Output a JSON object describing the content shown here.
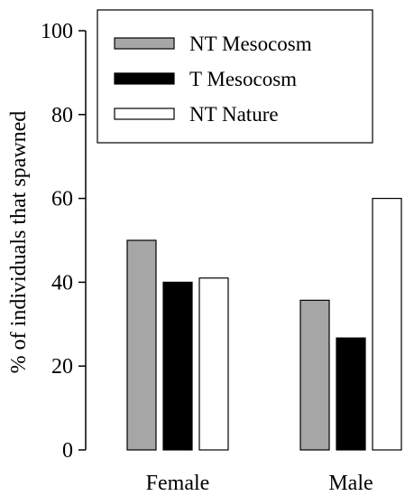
{
  "chart_data": {
    "type": "bar",
    "title": "",
    "xlabel": "",
    "ylabel": "% of individuals that spawned",
    "ylim": [
      0,
      100
    ],
    "yticks": [
      0,
      20,
      40,
      60,
      80,
      100
    ],
    "grid": false,
    "legend_position": "top-right",
    "categories": [
      "Female",
      "Male"
    ],
    "series": [
      {
        "name": "NT Mesocosm",
        "values": [
          50,
          35.7
        ],
        "color": "#a6a6a6"
      },
      {
        "name": "T Mesocosm",
        "values": [
          40,
          26.7
        ],
        "color": "#000000"
      },
      {
        "name": "NT Nature",
        "values": [
          41,
          60
        ],
        "color": "#ffffff"
      }
    ]
  }
}
